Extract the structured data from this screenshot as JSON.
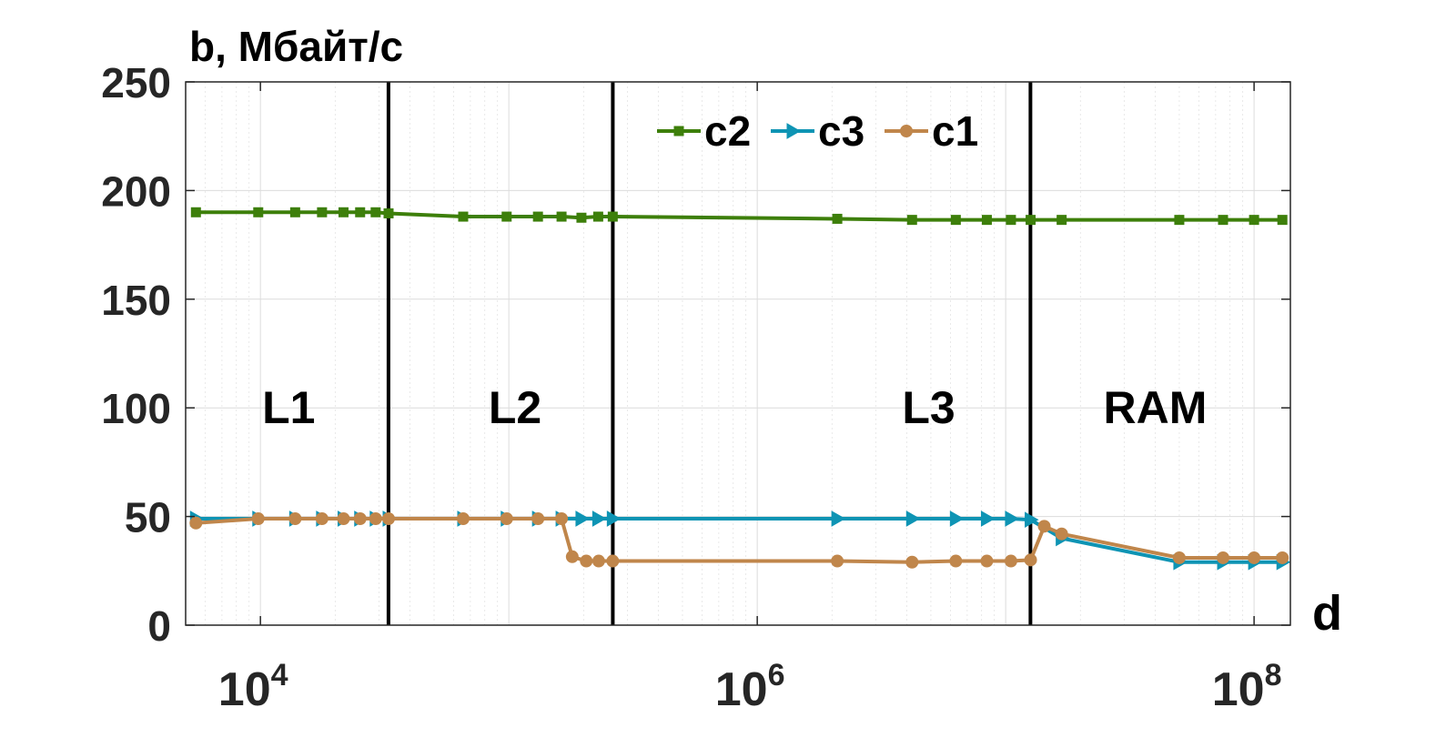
{
  "chart_data": {
    "type": "line",
    "ylabel": "b, Мбайт/с",
    "xlabel": "d",
    "x_scale": "log",
    "xlim": [
      5000,
      140000000
    ],
    "ylim": [
      0,
      250
    ],
    "grid": true,
    "legend_position": "top-right",
    "y_ticks": [
      0,
      50,
      100,
      150,
      200,
      250
    ],
    "y_tick_labels": [
      "0",
      "50",
      "100",
      "150",
      "200",
      "250"
    ],
    "x_ticks": [
      10000,
      1000000,
      100000000
    ],
    "x_tick_labels": [
      {
        "base": "10",
        "exp": "4"
      },
      {
        "base": "10",
        "exp": "6"
      },
      {
        "base": "10",
        "exp": "8"
      }
    ],
    "boundaries": [
      32768,
      262144,
      12582912
    ],
    "regions": [
      {
        "label": "L1",
        "x": 13000
      },
      {
        "label": "L2",
        "x": 106000
      },
      {
        "label": "L3",
        "x": 4900000
      },
      {
        "label": "RAM",
        "x": 40000000
      }
    ],
    "series": [
      {
        "name": "c2",
        "color": "#3d7f0a",
        "marker": "square",
        "points": [
          [
            5500,
            190
          ],
          [
            9800,
            190
          ],
          [
            13800,
            190
          ],
          [
            17700,
            190
          ],
          [
            21600,
            190
          ],
          [
            25200,
            190
          ],
          [
            29100,
            190
          ],
          [
            32800,
            189.5
          ],
          [
            65500,
            188
          ],
          [
            98000,
            188
          ],
          [
            131000,
            188
          ],
          [
            163000,
            188
          ],
          [
            196000,
            187.5
          ],
          [
            229000,
            188
          ],
          [
            262000,
            188
          ],
          [
            2100000,
            187
          ],
          [
            4200000,
            186.5
          ],
          [
            6300000,
            186.5
          ],
          [
            8400000,
            186.5
          ],
          [
            10500000,
            186.5
          ],
          [
            12600000,
            186.5
          ],
          [
            16800000,
            186.5
          ],
          [
            50000000,
            186.5
          ],
          [
            75000000,
            186.5
          ],
          [
            100000000,
            186.5
          ],
          [
            130000000,
            186.5
          ]
        ]
      },
      {
        "name": "c3",
        "color": "#0e94b4",
        "marker": "triangle-right",
        "points": [
          [
            5500,
            49
          ],
          [
            9800,
            49
          ],
          [
            13800,
            49
          ],
          [
            17700,
            49
          ],
          [
            21600,
            49
          ],
          [
            25200,
            49
          ],
          [
            29100,
            49
          ],
          [
            32800,
            49
          ],
          [
            65500,
            49
          ],
          [
            98000,
            49
          ],
          [
            131000,
            49
          ],
          [
            163000,
            49
          ],
          [
            196000,
            49
          ],
          [
            229000,
            49
          ],
          [
            262000,
            49
          ],
          [
            2100000,
            49
          ],
          [
            4200000,
            49
          ],
          [
            6300000,
            49
          ],
          [
            8400000,
            49
          ],
          [
            10500000,
            49
          ],
          [
            12600000,
            48.5
          ],
          [
            16800000,
            40
          ],
          [
            50000000,
            29
          ],
          [
            75000000,
            29
          ],
          [
            100000000,
            29
          ],
          [
            130000000,
            29
          ]
        ]
      },
      {
        "name": "c1",
        "color": "#c0864b",
        "marker": "circle",
        "points": [
          [
            5500,
            47
          ],
          [
            9800,
            49
          ],
          [
            13800,
            49
          ],
          [
            17700,
            49
          ],
          [
            21600,
            49
          ],
          [
            25200,
            49
          ],
          [
            29100,
            49
          ],
          [
            32800,
            49
          ],
          [
            65500,
            49
          ],
          [
            98000,
            49
          ],
          [
            131000,
            49
          ],
          [
            163000,
            49
          ],
          [
            180000,
            31.5
          ],
          [
            205000,
            29.5
          ],
          [
            230000,
            29.5
          ],
          [
            262000,
            29.5
          ],
          [
            2100000,
            29.5
          ],
          [
            4200000,
            29
          ],
          [
            6300000,
            29.5
          ],
          [
            8400000,
            29.5
          ],
          [
            10500000,
            29.5
          ],
          [
            12600000,
            30
          ],
          [
            14300000,
            45.5
          ],
          [
            16800000,
            42
          ],
          [
            50000000,
            31
          ],
          [
            75000000,
            31
          ],
          [
            100000000,
            31
          ],
          [
            130000000,
            31
          ]
        ]
      }
    ]
  }
}
